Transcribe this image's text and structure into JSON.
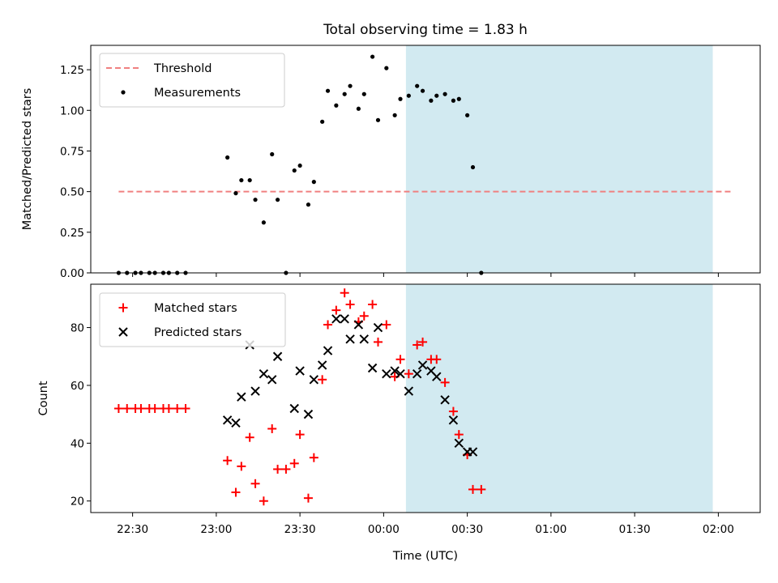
{
  "title": "Total observing time = 1.83 h",
  "xlabel": "Time (UTC)",
  "xticks": [
    "22:30",
    "23:00",
    "23:30",
    "00:00",
    "00:30",
    "01:00",
    "01:30",
    "02:00"
  ],
  "colors": {
    "shade": "#add8e6",
    "threshold": "#f08080",
    "measurements": "#000000",
    "matched": "#ff0000",
    "predicted": "#000000"
  },
  "chart_data": [
    {
      "type": "scatter",
      "ylabel": "Matched/Predicted stars",
      "xlim": [
        "22:15",
        "02:15"
      ],
      "ylim": [
        0,
        1.4
      ],
      "yticks": [
        "0.00",
        "0.25",
        "0.50",
        "0.75",
        "1.00",
        "1.25"
      ],
      "shaded_region": [
        "00:08",
        "01:58"
      ],
      "legend_position": "upper left",
      "threshold": {
        "name": "Threshold",
        "style": "dashed",
        "x": [
          "22:25",
          "02:05"
        ],
        "y": 0.5
      },
      "series": [
        {
          "name": "Measurements",
          "marker": "dot",
          "points": [
            [
              "22:25",
              0.0
            ],
            [
              "22:28",
              0.0
            ],
            [
              "22:31",
              0.0
            ],
            [
              "22:33",
              0.0
            ],
            [
              "22:36",
              0.0
            ],
            [
              "22:38",
              0.0
            ],
            [
              "22:41",
              0.0
            ],
            [
              "22:43",
              0.0
            ],
            [
              "22:46",
              0.0
            ],
            [
              "22:49",
              0.0
            ],
            [
              "23:04",
              0.71
            ],
            [
              "23:07",
              0.49
            ],
            [
              "23:09",
              0.57
            ],
            [
              "23:12",
              0.57
            ],
            [
              "23:14",
              0.45
            ],
            [
              "23:17",
              0.31
            ],
            [
              "23:20",
              0.73
            ],
            [
              "23:22",
              0.45
            ],
            [
              "23:25",
              0.0
            ],
            [
              "23:28",
              0.63
            ],
            [
              "23:30",
              0.66
            ],
            [
              "23:33",
              0.42
            ],
            [
              "23:35",
              0.56
            ],
            [
              "23:38",
              0.93
            ],
            [
              "23:40",
              1.12
            ],
            [
              "23:43",
              1.03
            ],
            [
              "23:46",
              1.1
            ],
            [
              "23:48",
              1.15
            ],
            [
              "23:51",
              1.01
            ],
            [
              "23:53",
              1.1
            ],
            [
              "23:56",
              1.33
            ],
            [
              "23:58",
              0.94
            ],
            [
              "00:01",
              1.26
            ],
            [
              "00:04",
              0.97
            ],
            [
              "00:06",
              1.07
            ],
            [
              "00:09",
              1.09
            ],
            [
              "00:12",
              1.15
            ],
            [
              "00:14",
              1.12
            ],
            [
              "00:17",
              1.06
            ],
            [
              "00:19",
              1.09
            ],
            [
              "00:22",
              1.1
            ],
            [
              "00:25",
              1.06
            ],
            [
              "00:27",
              1.07
            ],
            [
              "00:30",
              0.97
            ],
            [
              "00:32",
              0.65
            ],
            [
              "00:35",
              0.0
            ]
          ]
        }
      ]
    },
    {
      "type": "scatter",
      "ylabel": "Count",
      "xlabel": "Time (UTC)",
      "xlim": [
        "22:15",
        "02:15"
      ],
      "ylim": [
        16,
        95
      ],
      "yticks": [
        "20",
        "40",
        "60",
        "80"
      ],
      "shaded_region": [
        "00:08",
        "01:58"
      ],
      "legend_position": "upper left",
      "series": [
        {
          "name": "Matched stars",
          "marker": "plus",
          "points": [
            [
              "22:25",
              52
            ],
            [
              "22:28",
              52
            ],
            [
              "22:31",
              52
            ],
            [
              "22:33",
              52
            ],
            [
              "22:36",
              52
            ],
            [
              "22:38",
              52
            ],
            [
              "22:41",
              52
            ],
            [
              "22:43",
              52
            ],
            [
              "22:46",
              52
            ],
            [
              "22:49",
              52
            ],
            [
              "23:04",
              34
            ],
            [
              "23:07",
              23
            ],
            [
              "23:09",
              32
            ],
            [
              "23:12",
              42
            ],
            [
              "23:14",
              26
            ],
            [
              "23:17",
              20
            ],
            [
              "23:20",
              45
            ],
            [
              "23:22",
              31
            ],
            [
              "23:25",
              31
            ],
            [
              "23:28",
              33
            ],
            [
              "23:30",
              43
            ],
            [
              "23:33",
              21
            ],
            [
              "23:35",
              35
            ],
            [
              "23:38",
              62
            ],
            [
              "23:40",
              81
            ],
            [
              "23:43",
              86
            ],
            [
              "23:46",
              92
            ],
            [
              "23:48",
              88
            ],
            [
              "23:51",
              82
            ],
            [
              "23:53",
              84
            ],
            [
              "23:56",
              88
            ],
            [
              "23:58",
              75
            ],
            [
              "00:01",
              81
            ],
            [
              "00:04",
              63
            ],
            [
              "00:06",
              69
            ],
            [
              "00:09",
              64
            ],
            [
              "00:12",
              74
            ],
            [
              "00:14",
              75
            ],
            [
              "00:17",
              69
            ],
            [
              "00:19",
              69
            ],
            [
              "00:22",
              61
            ],
            [
              "00:25",
              51
            ],
            [
              "00:27",
              43
            ],
            [
              "00:30",
              36
            ],
            [
              "00:32",
              24
            ],
            [
              "00:35",
              24
            ]
          ]
        },
        {
          "name": "Predicted stars",
          "marker": "x",
          "points": [
            [
              "23:04",
              48
            ],
            [
              "23:07",
              47
            ],
            [
              "23:09",
              56
            ],
            [
              "23:12",
              74
            ],
            [
              "23:14",
              58
            ],
            [
              "23:17",
              64
            ],
            [
              "23:20",
              62
            ],
            [
              "23:22",
              70
            ],
            [
              "23:28",
              52
            ],
            [
              "23:30",
              65
            ],
            [
              "23:33",
              50
            ],
            [
              "23:35",
              62
            ],
            [
              "23:38",
              67
            ],
            [
              "23:40",
              72
            ],
            [
              "23:43",
              83
            ],
            [
              "23:46",
              83
            ],
            [
              "23:48",
              76
            ],
            [
              "23:51",
              81
            ],
            [
              "23:53",
              76
            ],
            [
              "23:56",
              66
            ],
            [
              "23:58",
              80
            ],
            [
              "00:01",
              64
            ],
            [
              "00:04",
              65
            ],
            [
              "00:06",
              64
            ],
            [
              "00:09",
              58
            ],
            [
              "00:12",
              64
            ],
            [
              "00:14",
              67
            ],
            [
              "00:17",
              65
            ],
            [
              "00:19",
              63
            ],
            [
              "00:22",
              55
            ],
            [
              "00:25",
              48
            ],
            [
              "00:27",
              40
            ],
            [
              "00:30",
              37
            ],
            [
              "00:32",
              37
            ]
          ]
        }
      ]
    }
  ]
}
